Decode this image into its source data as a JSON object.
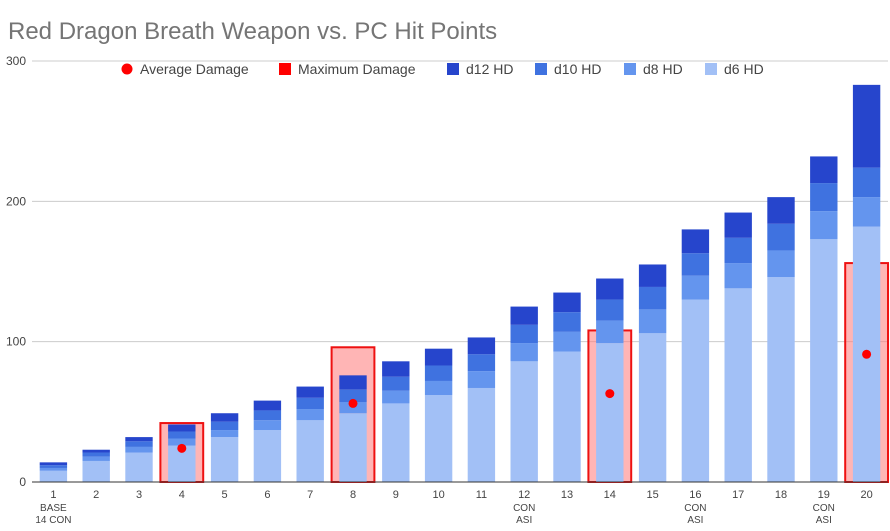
{
  "chart_data": {
    "type": "bar",
    "title": "Red Dragon Breath Weapon vs. PC Hit Points",
    "xlabel": "",
    "ylabel": "",
    "ylim": [
      0,
      300
    ],
    "yticks": [
      "0",
      "100",
      "200",
      "300"
    ],
    "grid": true,
    "legend_position": "top",
    "categories": [
      "1",
      "2",
      "3",
      "4",
      "5",
      "6",
      "7",
      "8",
      "9",
      "10",
      "11",
      "12",
      "13",
      "14",
      "15",
      "16",
      "17",
      "18",
      "19",
      "20"
    ],
    "category_notes": [
      "BASE\n14 CON",
      "",
      "",
      "",
      "",
      "",
      "",
      "",
      "",
      "",
      "",
      "CON\nASI",
      "",
      "",
      "",
      "CON\nASI",
      "",
      "",
      "CON\nASI",
      ""
    ],
    "stacked_series": [
      {
        "name": "d6 HD",
        "color": "#a2c0f6",
        "values": [
          8,
          15,
          21,
          26,
          32,
          37,
          44,
          49,
          56,
          62,
          67,
          86,
          93,
          99,
          106,
          130,
          138,
          146,
          173,
          182
        ]
      },
      {
        "name": "d8 HD",
        "color": "#6495ee",
        "values": [
          2,
          3,
          4,
          5,
          5,
          7,
          8,
          8,
          9,
          10,
          12,
          13,
          14,
          16,
          17,
          17,
          18,
          19,
          20,
          21
        ]
      },
      {
        "name": "d10 HD",
        "color": "#3f72e0",
        "values": [
          2,
          3,
          4,
          5,
          6,
          7,
          8,
          9,
          10,
          11,
          12,
          13,
          14,
          15,
          16,
          16,
          18,
          19,
          20,
          21
        ]
      },
      {
        "name": "d12 HD",
        "color": "#2645cc",
        "values": [
          2,
          2,
          3,
          5,
          6,
          7,
          8,
          10,
          11,
          12,
          12,
          13,
          14,
          15,
          16,
          17,
          18,
          19,
          19,
          59
        ]
      }
    ],
    "overlay_series": [
      {
        "name": "Average Damage",
        "marker": "dot",
        "color": "#ff0000",
        "points": [
          {
            "x": "4",
            "y": 24
          },
          {
            "x": "8",
            "y": 56
          },
          {
            "x": "14",
            "y": 63
          },
          {
            "x": "20",
            "y": 91
          }
        ]
      },
      {
        "name": "Maximum Damage",
        "marker": "square",
        "color": "#ff0000",
        "points": [
          {
            "x": "4",
            "y": 42
          },
          {
            "x": "8",
            "y": 96
          },
          {
            "x": "14",
            "y": 108
          },
          {
            "x": "20",
            "y": 156
          }
        ]
      }
    ],
    "legend": [
      "Average Damage",
      "Maximum Damage",
      "d12 HD",
      "d10 HD",
      "d8 HD",
      "d6 HD"
    ]
  }
}
